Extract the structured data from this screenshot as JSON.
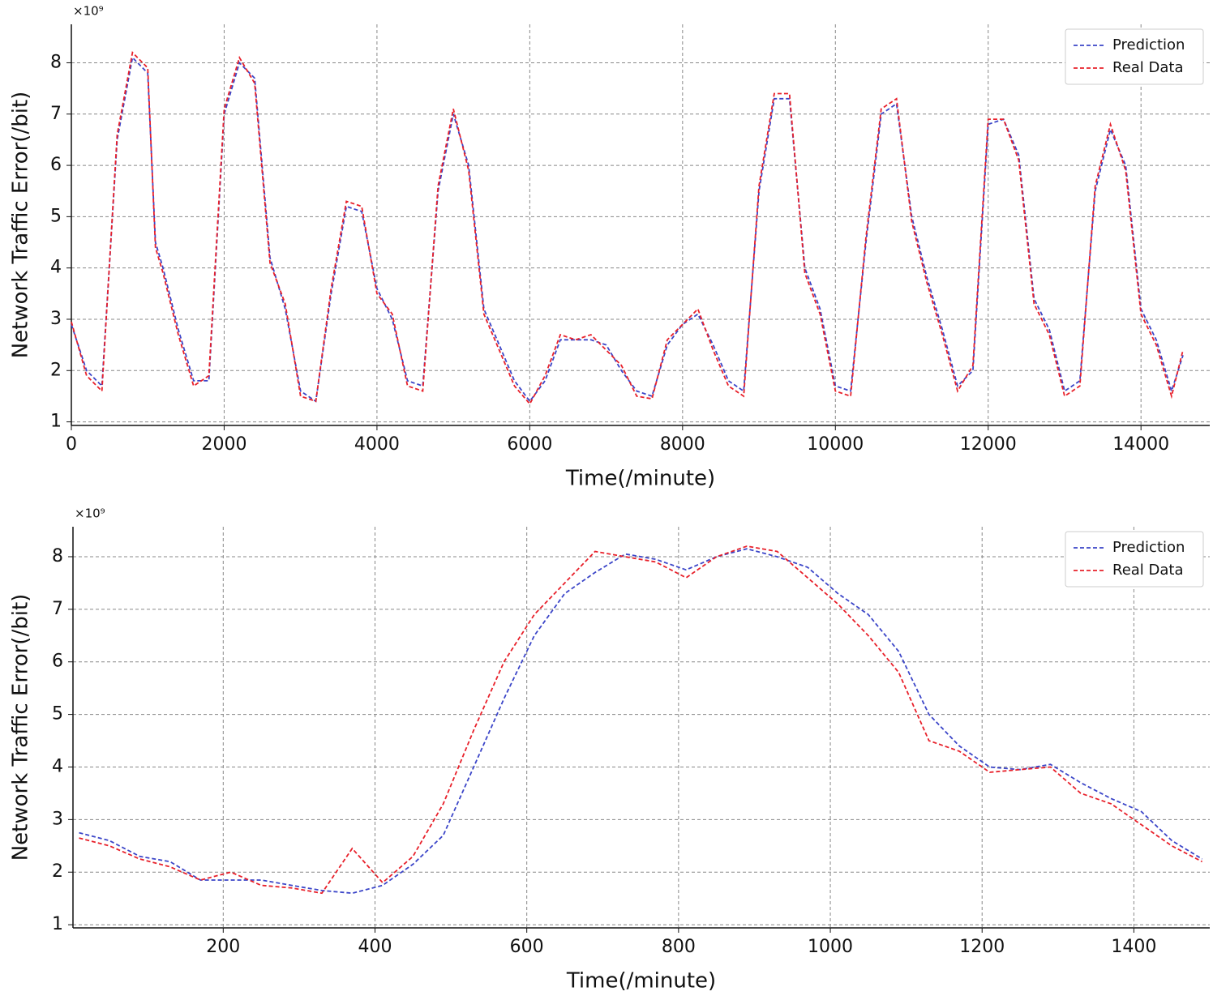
{
  "chart_data": [
    {
      "type": "line",
      "x_label": "Time(/minute)",
      "y_label": "Network Traffic Error(/bit)",
      "y_offset_label": "×10⁹",
      "xlim": [
        0,
        14900
      ],
      "ylim": [
        0.93,
        8.75
      ],
      "xticks": [
        0,
        2000,
        4000,
        6000,
        8000,
        10000,
        12000,
        14000
      ],
      "yticks": [
        1,
        2,
        3,
        4,
        5,
        6,
        7,
        8
      ],
      "grid": true,
      "legend": "upper right",
      "x": [
        0,
        200,
        400,
        600,
        800,
        1000,
        1100,
        1200,
        1400,
        1600,
        1800,
        2000,
        2200,
        2400,
        2600,
        2800,
        3000,
        3200,
        3400,
        3600,
        3800,
        4000,
        4200,
        4400,
        4600,
        4800,
        5000,
        5200,
        5400,
        5600,
        5800,
        6000,
        6200,
        6400,
        6600,
        6800,
        7000,
        7200,
        7400,
        7600,
        7800,
        8000,
        8200,
        8400,
        8600,
        8800,
        9000,
        9200,
        9400,
        9600,
        9800,
        10000,
        10200,
        10400,
        10600,
        10800,
        11000,
        11200,
        11400,
        11600,
        11800,
        12000,
        12200,
        12400,
        12600,
        12800,
        13000,
        13200,
        13400,
        13600,
        13800,
        14000,
        14200,
        14400,
        14550
      ],
      "series": [
        {
          "name": "Prediction",
          "color": "#3b45c8",
          "values": [
            2.9,
            2.0,
            1.7,
            6.5,
            8.1,
            7.8,
            4.5,
            4.0,
            2.8,
            1.8,
            1.8,
            7.0,
            8.0,
            7.7,
            4.2,
            3.2,
            1.6,
            1.4,
            3.5,
            5.2,
            5.1,
            3.6,
            3.0,
            1.8,
            1.7,
            5.5,
            7.0,
            6.0,
            3.2,
            2.5,
            1.8,
            1.4,
            1.8,
            2.6,
            2.6,
            2.6,
            2.5,
            2.0,
            1.6,
            1.5,
            2.5,
            2.9,
            3.1,
            2.5,
            1.8,
            1.6,
            5.5,
            7.3,
            7.3,
            4.0,
            3.2,
            1.7,
            1.6,
            4.5,
            7.0,
            7.2,
            5.0,
            3.8,
            2.8,
            1.7,
            2.0,
            6.8,
            6.9,
            6.2,
            3.4,
            2.8,
            1.6,
            1.8,
            5.5,
            6.7,
            6.0,
            3.2,
            2.6,
            1.6,
            2.3
          ]
        },
        {
          "name": "Real Data",
          "color": "#e8202a",
          "values": [
            2.95,
            1.9,
            1.6,
            6.6,
            8.2,
            7.9,
            4.4,
            3.9,
            2.7,
            1.7,
            1.9,
            7.1,
            8.1,
            7.6,
            4.1,
            3.3,
            1.5,
            1.4,
            3.6,
            5.3,
            5.2,
            3.5,
            3.1,
            1.7,
            1.6,
            5.6,
            7.1,
            5.9,
            3.1,
            2.4,
            1.7,
            1.35,
            1.9,
            2.7,
            2.6,
            2.7,
            2.4,
            2.1,
            1.5,
            1.45,
            2.6,
            2.9,
            3.2,
            2.4,
            1.7,
            1.5,
            5.6,
            7.4,
            7.4,
            3.9,
            3.1,
            1.6,
            1.5,
            4.6,
            7.1,
            7.3,
            4.9,
            3.7,
            2.7,
            1.6,
            2.1,
            6.9,
            6.9,
            6.1,
            3.3,
            2.7,
            1.5,
            1.7,
            5.6,
            6.8,
            5.9,
            3.1,
            2.5,
            1.5,
            2.4
          ]
        }
      ]
    },
    {
      "type": "line",
      "x_label": "Time(/minute)",
      "y_label": "Network Traffic Error(/bit)",
      "y_offset_label": "×10⁹",
      "xlim": [
        2,
        1500
      ],
      "ylim": [
        0.94,
        8.57
      ],
      "xticks": [
        200,
        400,
        600,
        800,
        1000,
        1200,
        1400
      ],
      "yticks": [
        1,
        2,
        3,
        4,
        5,
        6,
        7,
        8
      ],
      "grid": true,
      "legend": "upper right",
      "x": [
        10,
        50,
        90,
        130,
        170,
        210,
        250,
        290,
        330,
        370,
        410,
        450,
        490,
        530,
        570,
        610,
        650,
        690,
        730,
        770,
        810,
        850,
        890,
        930,
        970,
        1010,
        1050,
        1090,
        1130,
        1170,
        1210,
        1250,
        1290,
        1330,
        1370,
        1410,
        1450,
        1490
      ],
      "series": [
        {
          "name": "Prediction",
          "color": "#3b45c8",
          "values": [
            2.75,
            2.6,
            2.3,
            2.2,
            1.85,
            1.85,
            1.85,
            1.75,
            1.65,
            1.6,
            1.75,
            2.15,
            2.7,
            4.0,
            5.3,
            6.5,
            7.3,
            7.7,
            8.05,
            7.95,
            7.75,
            8.0,
            8.15,
            8.0,
            7.8,
            7.3,
            6.9,
            6.2,
            5.0,
            4.4,
            4.0,
            3.95,
            4.05,
            3.7,
            3.4,
            3.15,
            2.6,
            2.25
          ]
        },
        {
          "name": "Real Data",
          "color": "#e8202a",
          "values": [
            2.65,
            2.5,
            2.25,
            2.1,
            1.85,
            2.0,
            1.75,
            1.7,
            1.6,
            2.45,
            1.8,
            2.3,
            3.3,
            4.7,
            6.0,
            6.9,
            7.5,
            8.1,
            8.0,
            7.9,
            7.6,
            8.0,
            8.2,
            8.1,
            7.6,
            7.1,
            6.5,
            5.8,
            4.5,
            4.3,
            3.9,
            3.95,
            4.0,
            3.5,
            3.3,
            2.9,
            2.5,
            2.2
          ]
        }
      ]
    }
  ]
}
